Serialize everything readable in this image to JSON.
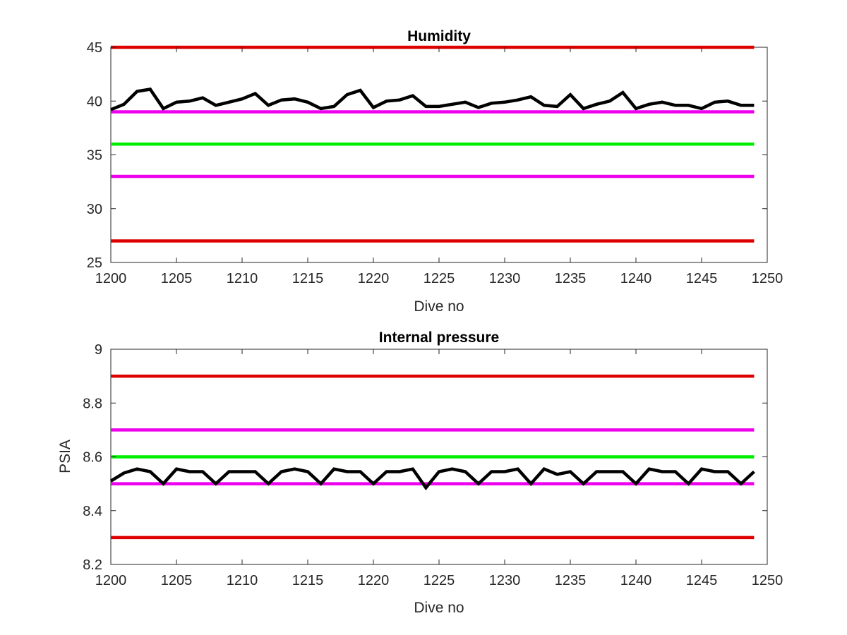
{
  "chart_data": [
    {
      "type": "line",
      "title": "Humidity",
      "xlabel": "Dive no",
      "ylabel": "",
      "xlim": [
        1200,
        1250
      ],
      "ylim": [
        25,
        45
      ],
      "xticks": [
        "1200",
        "1205",
        "1210",
        "1215",
        "1220",
        "1225",
        "1230",
        "1235",
        "1240",
        "1245",
        "1250"
      ],
      "yticks": [
        "25",
        "30",
        "35",
        "40",
        "45"
      ],
      "grid": false,
      "series": [
        {
          "color": "#000000",
          "x": [
            1200,
            1201,
            1202,
            1203,
            1204,
            1205,
            1206,
            1207,
            1208,
            1209,
            1210,
            1211,
            1212,
            1213,
            1214,
            1215,
            1216,
            1217,
            1218,
            1219,
            1220,
            1221,
            1222,
            1223,
            1224,
            1225,
            1226,
            1227,
            1228,
            1229,
            1230,
            1231,
            1232,
            1233,
            1234,
            1235,
            1236,
            1237,
            1238,
            1239,
            1240,
            1241,
            1242,
            1243,
            1244,
            1245,
            1246,
            1247,
            1248,
            1249
          ],
          "y": [
            39.2,
            39.7,
            40.9,
            41.1,
            39.3,
            39.9,
            40.0,
            40.3,
            39.6,
            39.9,
            40.2,
            40.7,
            39.6,
            40.1,
            40.2,
            39.9,
            39.3,
            39.5,
            40.6,
            41.0,
            39.4,
            40.0,
            40.1,
            40.5,
            39.5,
            39.5,
            39.7,
            39.9,
            39.4,
            39.8,
            39.9,
            40.1,
            40.4,
            39.6,
            39.5,
            40.6,
            39.3,
            39.7,
            40.0,
            40.8,
            39.3,
            39.7,
            39.9,
            39.6,
            39.6,
            39.3,
            39.9,
            40.0,
            39.6,
            39.6
          ]
        },
        {
          "color": "#dd0000",
          "x": [
            1200,
            1249
          ],
          "y": [
            45,
            45
          ]
        },
        {
          "color": "#ee00ee",
          "x": [
            1200,
            1249
          ],
          "y": [
            39,
            39
          ]
        },
        {
          "color": "#00ee00",
          "x": [
            1200,
            1249
          ],
          "y": [
            36,
            36
          ]
        },
        {
          "color": "#ee00ee",
          "x": [
            1200,
            1249
          ],
          "y": [
            33,
            33
          ]
        },
        {
          "color": "#dd0000",
          "x": [
            1200,
            1249
          ],
          "y": [
            27,
            27
          ]
        }
      ]
    },
    {
      "type": "line",
      "title": "Internal pressure",
      "xlabel": "Dive no",
      "ylabel": "PSIA",
      "xlim": [
        1200,
        1250
      ],
      "ylim": [
        8.2,
        9.0
      ],
      "xticks": [
        "1200",
        "1205",
        "1210",
        "1215",
        "1220",
        "1225",
        "1230",
        "1235",
        "1240",
        "1245",
        "1250"
      ],
      "yticks": [
        "8.2",
        "8.4",
        "8.6",
        "8.8",
        "9"
      ],
      "grid": false,
      "series": [
        {
          "color": "#000000",
          "x": [
            1200,
            1201,
            1202,
            1203,
            1204,
            1205,
            1206,
            1207,
            1208,
            1209,
            1210,
            1211,
            1212,
            1213,
            1214,
            1215,
            1216,
            1217,
            1218,
            1219,
            1220,
            1221,
            1222,
            1223,
            1224,
            1225,
            1226,
            1227,
            1228,
            1229,
            1230,
            1231,
            1232,
            1233,
            1234,
            1235,
            1236,
            1237,
            1238,
            1239,
            1240,
            1241,
            1242,
            1243,
            1244,
            1245,
            1246,
            1247,
            1248,
            1249
          ],
          "y": [
            8.51,
            8.54,
            8.555,
            8.545,
            8.5,
            8.555,
            8.545,
            8.545,
            8.5,
            8.545,
            8.545,
            8.545,
            8.5,
            8.545,
            8.555,
            8.545,
            8.5,
            8.555,
            8.545,
            8.545,
            8.5,
            8.545,
            8.545,
            8.555,
            8.485,
            8.545,
            8.555,
            8.545,
            8.5,
            8.545,
            8.545,
            8.555,
            8.5,
            8.555,
            8.535,
            8.545,
            8.5,
            8.545,
            8.545,
            8.545,
            8.5,
            8.555,
            8.545,
            8.545,
            8.5,
            8.555,
            8.545,
            8.545,
            8.5,
            8.545
          ]
        },
        {
          "color": "#dd0000",
          "x": [
            1200,
            1249
          ],
          "y": [
            8.9,
            8.9
          ]
        },
        {
          "color": "#ee00ee",
          "x": [
            1200,
            1249
          ],
          "y": [
            8.7,
            8.7
          ]
        },
        {
          "color": "#00ee00",
          "x": [
            1200,
            1249
          ],
          "y": [
            8.6,
            8.6
          ]
        },
        {
          "color": "#ee00ee",
          "x": [
            1200,
            1249
          ],
          "y": [
            8.5,
            8.5
          ]
        },
        {
          "color": "#dd0000",
          "x": [
            1200,
            1249
          ],
          "y": [
            8.3,
            8.3
          ]
        }
      ]
    }
  ]
}
